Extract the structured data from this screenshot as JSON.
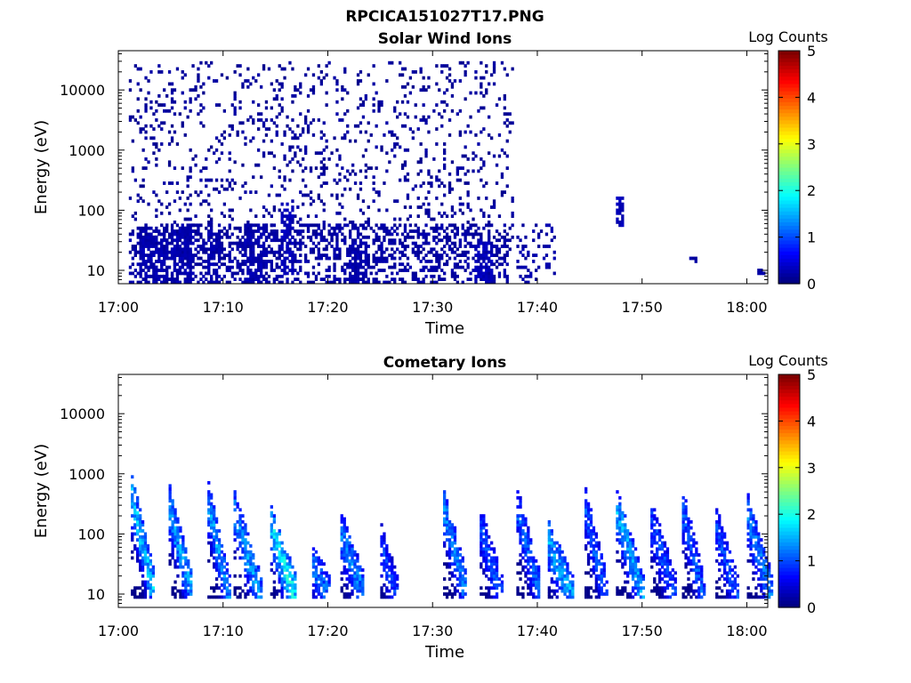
{
  "figure": {
    "title": "RPCICA151027T17.PNG"
  },
  "chart_data": [
    {
      "type": "heatmap",
      "title": "Solar Wind Ions",
      "xlabel": "Time",
      "ylabel": "Energy (eV)",
      "yscale": "log",
      "xlim": [
        "17:00",
        "18:02"
      ],
      "ylim": [
        6,
        45000
      ],
      "x_ticks": [
        "17:00",
        "17:10",
        "17:20",
        "17:30",
        "17:40",
        "17:50",
        "18:00"
      ],
      "y_ticks": [
        "10",
        "100",
        "1000",
        "10000"
      ],
      "colorbar": {
        "label": "Log Counts",
        "range": [
          0,
          5
        ],
        "ticks": [
          "0",
          "1",
          "2",
          "3",
          "4",
          "5"
        ],
        "colormap": "jet"
      },
      "description_of_values": "Sparse single-count (log counts ~0) pixels from 17:01 to 17:37 spanning 10 eV - 30 keV, denser near 10-50 eV; isolated pixels after 17:40.",
      "clusters": [
        {
          "t_start": 1.0,
          "t_end": 37.5,
          "e_min": 15,
          "e_max": 30000,
          "density": 0.12,
          "logc": 0.05
        },
        {
          "t_start": 1.0,
          "t_end": 37.0,
          "e_min": 6,
          "e_max": 60,
          "density": 0.35,
          "logc": 0.1
        },
        {
          "t_start": 2.0,
          "t_end": 4.5,
          "e_min": 6,
          "e_max": 40,
          "density": 0.6,
          "logc": 0.15
        },
        {
          "t_start": 5.0,
          "t_end": 7.0,
          "e_min": 6,
          "e_max": 60,
          "density": 0.55,
          "logc": 0.15
        },
        {
          "t_start": 8.5,
          "t_end": 9.5,
          "e_min": 6,
          "e_max": 40,
          "density": 0.5,
          "logc": 0.15
        },
        {
          "t_start": 12.0,
          "t_end": 14.0,
          "e_min": 6,
          "e_max": 60,
          "density": 0.55,
          "logc": 0.15
        },
        {
          "t_start": 15.5,
          "t_end": 16.5,
          "e_min": 8,
          "e_max": 120,
          "density": 0.55,
          "logc": 0.2
        },
        {
          "t_start": 22.0,
          "t_end": 23.5,
          "e_min": 6,
          "e_max": 30,
          "density": 0.5,
          "logc": 0.15
        },
        {
          "t_start": 34.0,
          "t_end": 35.5,
          "e_min": 6,
          "e_max": 30,
          "density": 0.6,
          "logc": 0.2
        },
        {
          "t_start": 38.0,
          "t_end": 41.5,
          "e_min": 6,
          "e_max": 60,
          "density": 0.15,
          "logc": 0.1
        },
        {
          "t_start": 47.5,
          "t_end": 48.2,
          "e_min": 50,
          "e_max": 160,
          "density": 0.7,
          "logc": 0.2
        },
        {
          "t_start": 54.5,
          "t_end": 55.0,
          "e_min": 12,
          "e_max": 16,
          "density": 0.8,
          "logc": 0.1
        },
        {
          "t_start": 61.0,
          "t_end": 61.7,
          "e_min": 8,
          "e_max": 10,
          "density": 0.9,
          "logc": 0.1
        }
      ]
    },
    {
      "type": "heatmap",
      "title": "Cometary Ions",
      "xlabel": "Time",
      "ylabel": "Energy (eV)",
      "yscale": "log",
      "xlim": [
        "17:00",
        "18:02"
      ],
      "ylim": [
        6,
        45000
      ],
      "x_ticks": [
        "17:00",
        "17:10",
        "17:20",
        "17:30",
        "17:40",
        "17:50",
        "18:00"
      ],
      "y_ticks": [
        "10",
        "100",
        "1000",
        "10000"
      ],
      "colorbar": {
        "label": "Log Counts",
        "range": [
          0,
          5
        ],
        "ticks": [
          "0",
          "1",
          "2",
          "3",
          "4",
          "5"
        ],
        "colormap": "jet"
      },
      "description_of_values": "Repeating dispersive bursts about every 3.5 min, energy decreasing from ~700 eV to ~10 eV within each burst, peak log counts ~1.5-2 near 20-60 eV; gap around 17:27-17:30.",
      "bursts": [
        {
          "t": 1.2,
          "e_top": 800,
          "width": 2.2,
          "peak": 1.8
        },
        {
          "t": 4.8,
          "e_top": 550,
          "width": 2.2,
          "peak": 1.6
        },
        {
          "t": 8.5,
          "e_top": 600,
          "width": 2.0,
          "peak": 1.5
        },
        {
          "t": 11.0,
          "e_top": 450,
          "width": 2.5,
          "peak": 1.5
        },
        {
          "t": 14.5,
          "e_top": 250,
          "width": 2.3,
          "peak": 2.0
        },
        {
          "t": 18.5,
          "e_top": 60,
          "width": 1.5,
          "peak": 1.3
        },
        {
          "t": 21.2,
          "e_top": 200,
          "width": 2.2,
          "peak": 1.4
        },
        {
          "t": 25.0,
          "e_top": 120,
          "width": 1.5,
          "peak": 1.0
        },
        {
          "t": 31.0,
          "e_top": 500,
          "width": 2.2,
          "peak": 1.4
        },
        {
          "t": 34.5,
          "e_top": 250,
          "width": 2.0,
          "peak": 1.1
        },
        {
          "t": 38.0,
          "e_top": 500,
          "width": 2.2,
          "peak": 1.2
        },
        {
          "t": 41.0,
          "e_top": 150,
          "width": 2.3,
          "peak": 1.6
        },
        {
          "t": 44.5,
          "e_top": 500,
          "width": 2.0,
          "peak": 1.2
        },
        {
          "t": 47.5,
          "e_top": 500,
          "width": 2.5,
          "peak": 1.6
        },
        {
          "t": 50.8,
          "e_top": 300,
          "width": 2.3,
          "peak": 1.1
        },
        {
          "t": 53.8,
          "e_top": 450,
          "width": 2.0,
          "peak": 1.2
        },
        {
          "t": 57.0,
          "e_top": 250,
          "width": 2.0,
          "peak": 1.1
        },
        {
          "t": 60.0,
          "e_top": 400,
          "width": 2.3,
          "peak": 1.4
        }
      ]
    }
  ]
}
